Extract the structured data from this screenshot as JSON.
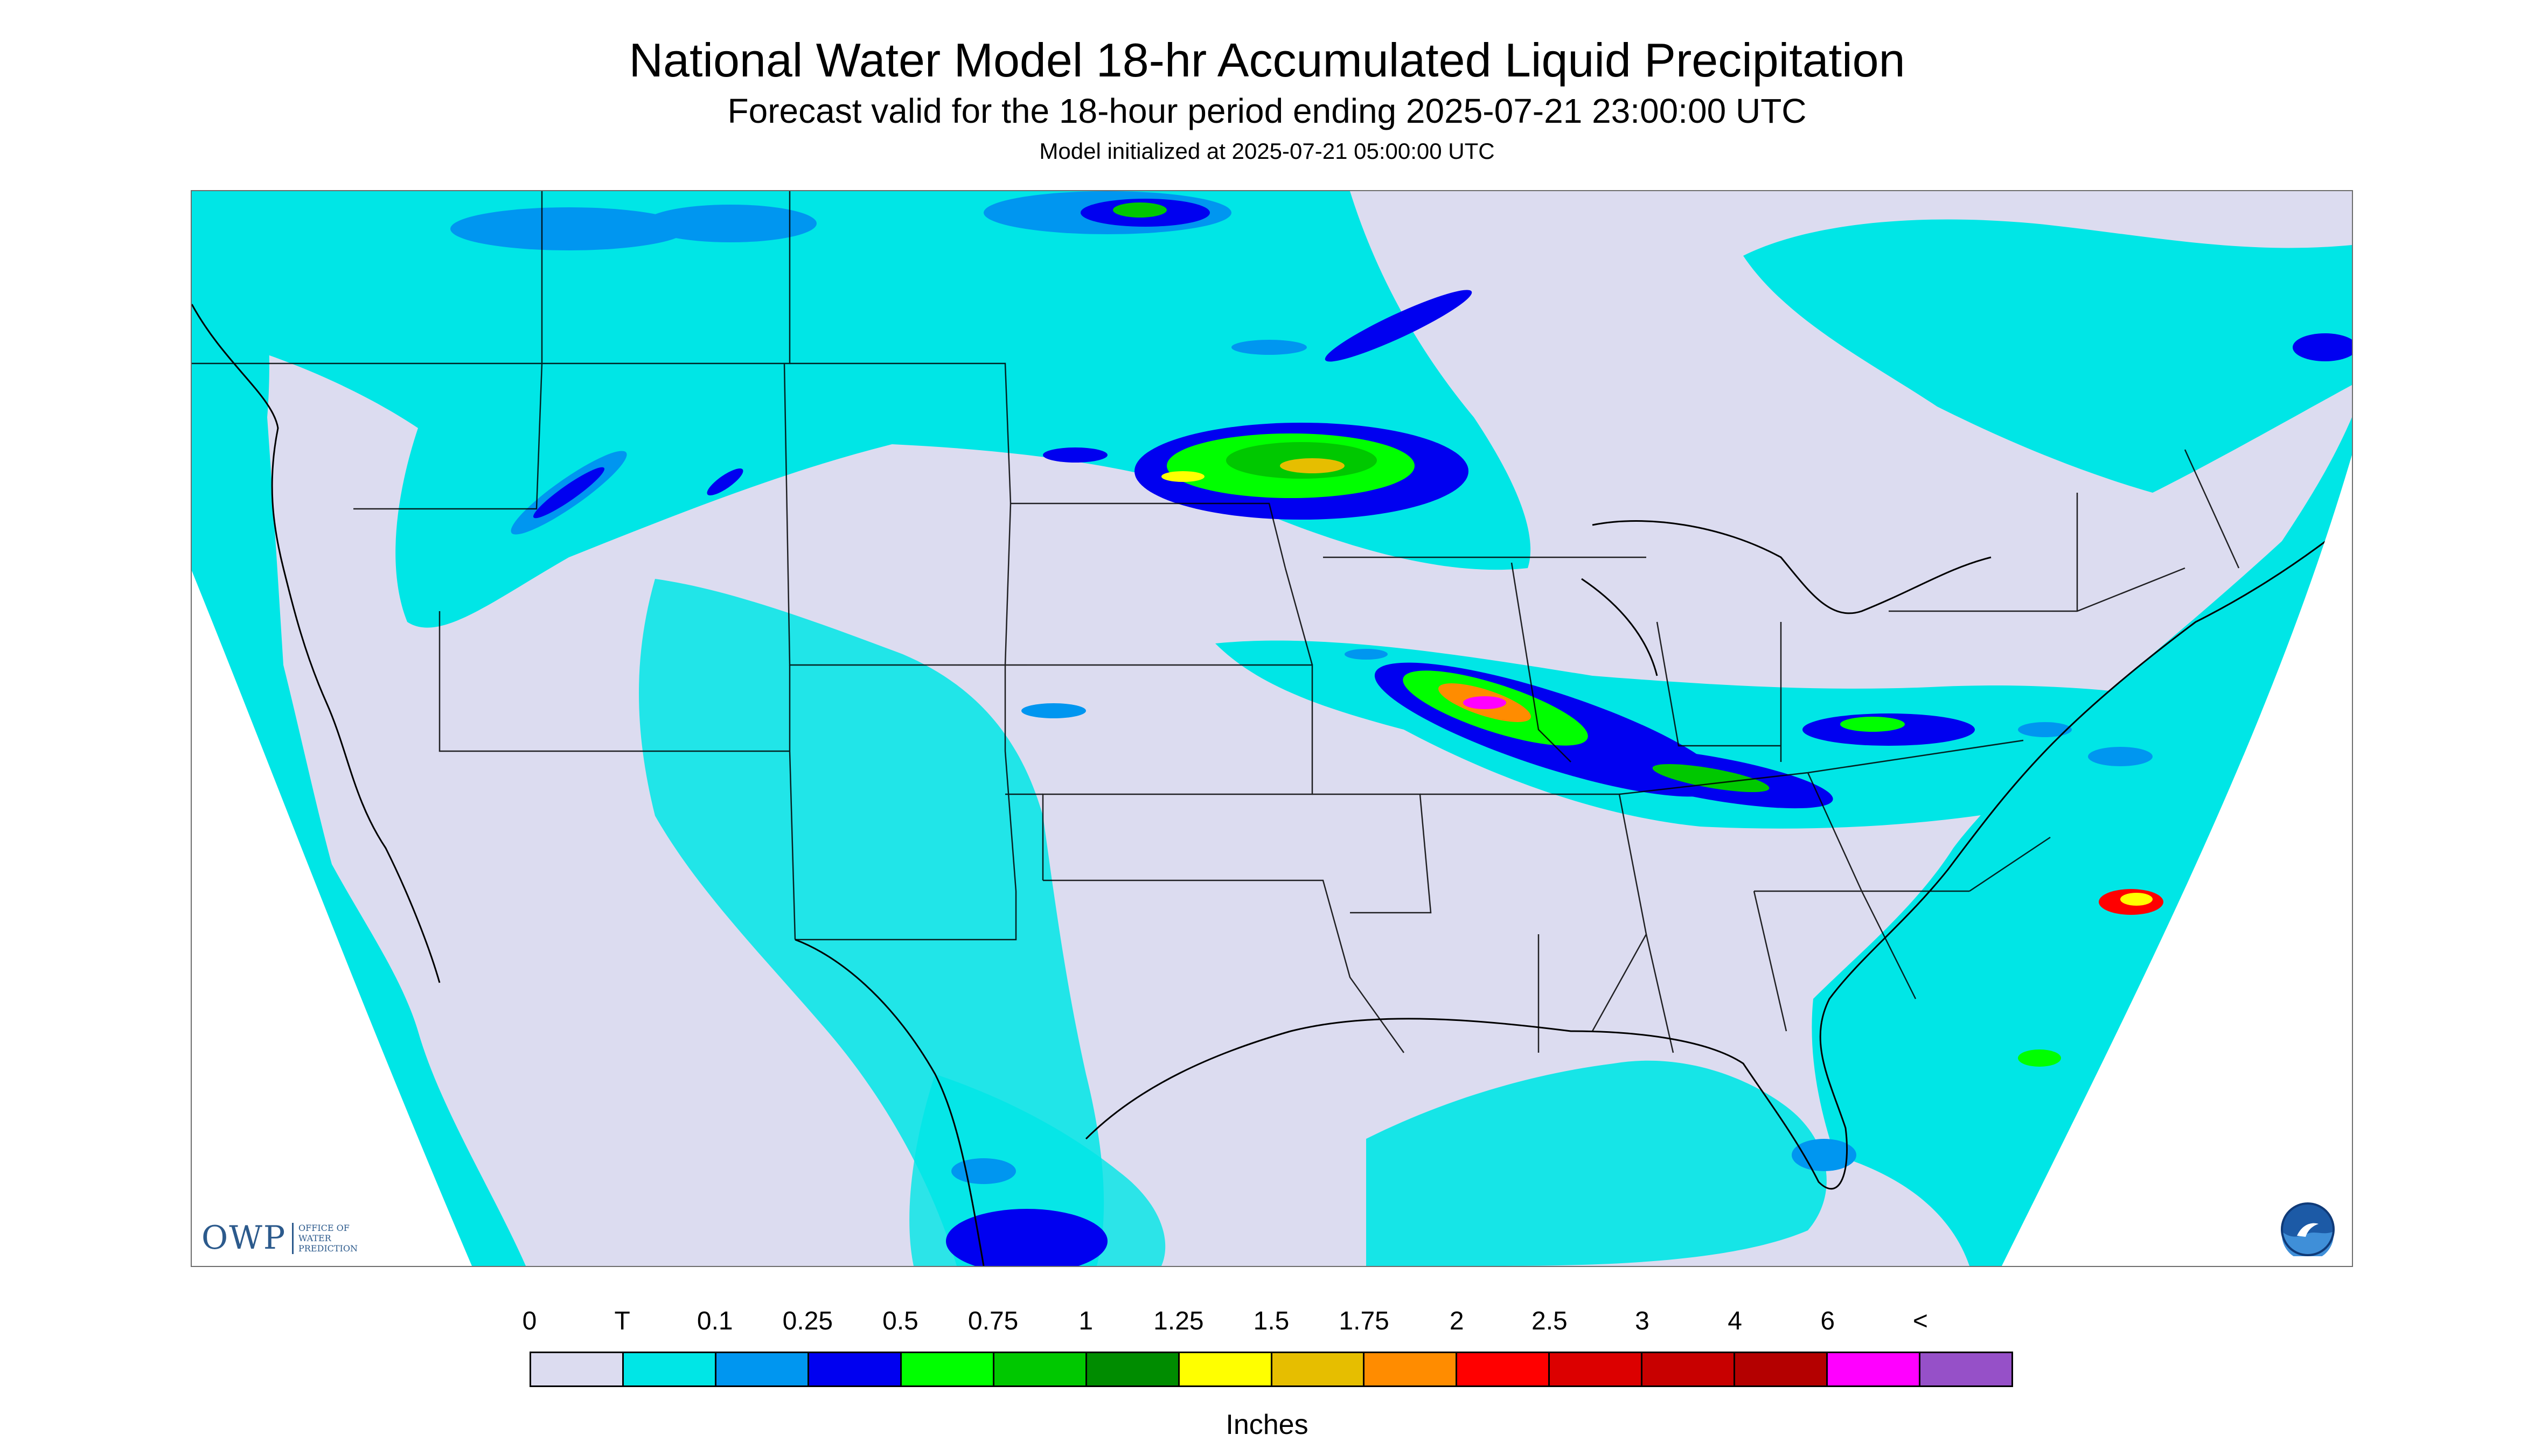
{
  "header": {
    "title": "National Water Model 18-hr Accumulated Liquid Precipitation",
    "subtitle": "Forecast valid for the 18-hour period ending 2025-07-21 23:00:00 UTC",
    "init_line": "Model initialized at 2025-07-21 05:00:00 UTC"
  },
  "map": {
    "region": "CONUS",
    "no_data_color": "#ffffff",
    "boundary_color": "#000000",
    "logos": {
      "owp": {
        "mark": "OWP",
        "lines": [
          "Office of",
          "Water",
          "Prediction"
        ]
      },
      "noaa": {
        "icon": "noaa-logo-icon"
      }
    }
  },
  "legend": {
    "tick_labels": [
      "0",
      "T",
      "0.1",
      "0.25",
      "0.5",
      "0.75",
      "1",
      "1.25",
      "1.5",
      "1.75",
      "2",
      "2.5",
      "3",
      "4",
      "6",
      "<"
    ],
    "colors": [
      "#dcdcf0",
      "#00e6e6",
      "#0096f0",
      "#0000f0",
      "#00ff00",
      "#00c800",
      "#008c00",
      "#ffff00",
      "#e6be00",
      "#ff8c00",
      "#ff0000",
      "#dc0000",
      "#c80000",
      "#b40000",
      "#ff00ff",
      "#9650c8"
    ],
    "units": "Inches"
  }
}
